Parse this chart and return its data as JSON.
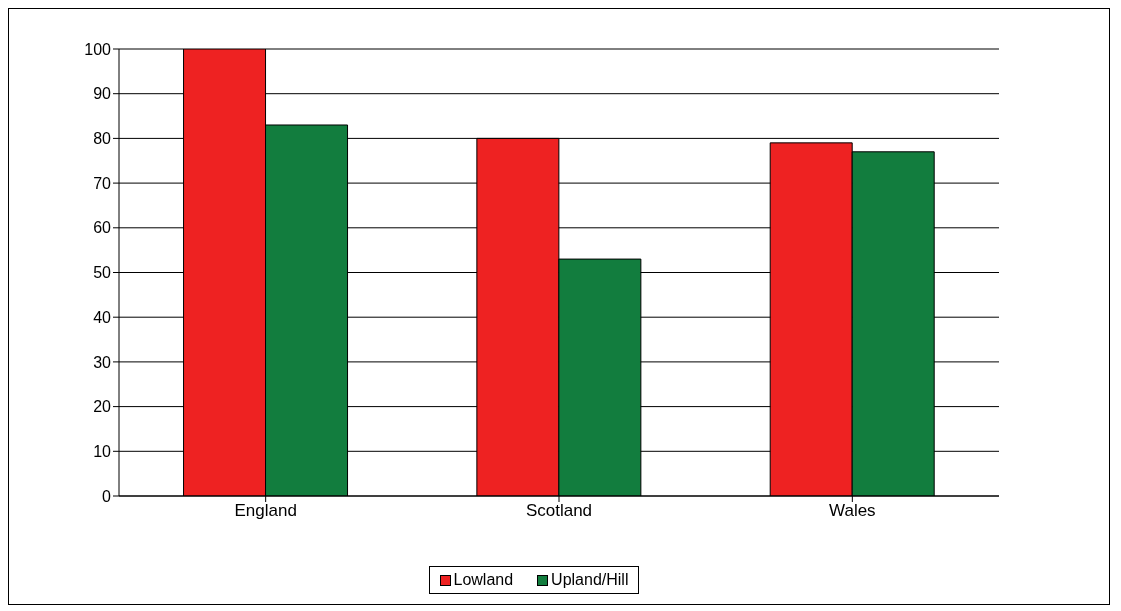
{
  "chart_data": {
    "type": "bar",
    "categories": [
      "England",
      "Scotland",
      "Wales"
    ],
    "series": [
      {
        "name": "Lowland",
        "color": "#ee2222",
        "values": [
          100,
          80,
          79
        ]
      },
      {
        "name": "Upland/Hill",
        "color": "#127d3e",
        "values": [
          83,
          53,
          77
        ]
      }
    ],
    "ylim": [
      0,
      100
    ],
    "yticks": [
      0,
      10,
      20,
      30,
      40,
      50,
      60,
      70,
      80,
      90,
      100
    ],
    "grid": "y",
    "legend": "bottom"
  }
}
